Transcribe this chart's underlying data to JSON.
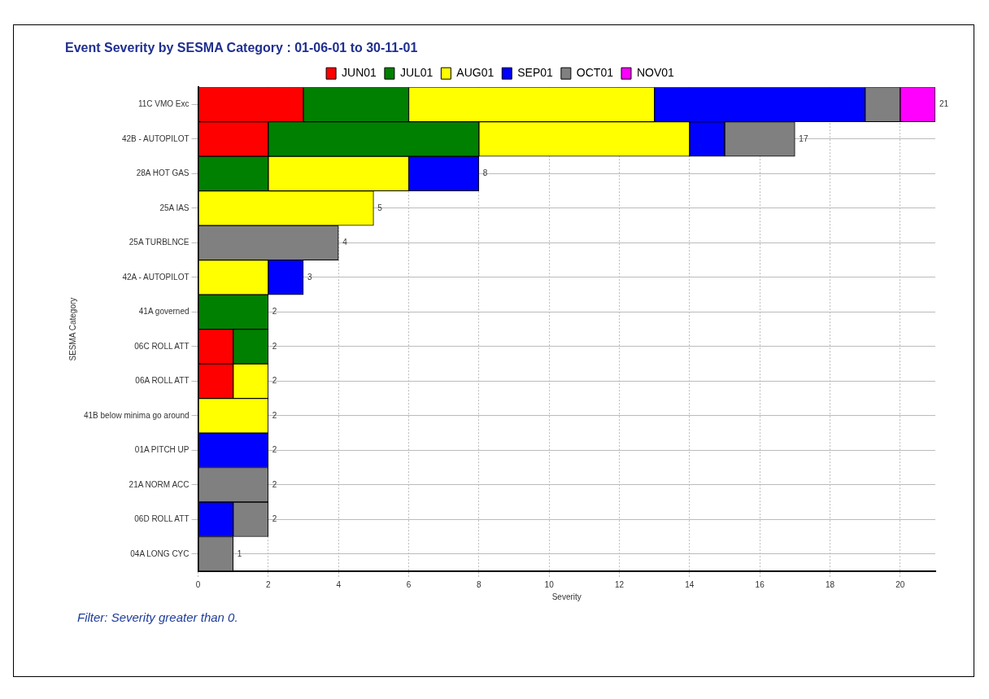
{
  "chart_data": {
    "type": "bar",
    "orientation": "horizontal",
    "stacked": true,
    "title": "Event Severity by SESMA Category : 01-06-01 to 30-11-01",
    "xlabel": "Severity",
    "ylabel": "SESMA Category",
    "categories": [
      "11C VMO Exc",
      "42B - AUTOPILOT",
      "28A HOT GAS",
      "25A IAS",
      "25A TURBLNCE",
      "42A - AUTOPILOT",
      "41A governed",
      "06C ROLL ATT",
      "06A ROLL ATT",
      "41B below minima go around",
      "01A PITCH UP",
      "21A NORM ACC",
      "06D ROLL ATT",
      "04A LONG CYC"
    ],
    "series": [
      {
        "name": "JUN01",
        "color": "#ff0000",
        "values": [
          3,
          2,
          0,
          0,
          0,
          0,
          0,
          1,
          1,
          0,
          0,
          0,
          0,
          0
        ]
      },
      {
        "name": "JUL01",
        "color": "#008000",
        "values": [
          3,
          6,
          2,
          0,
          0,
          0,
          2,
          1,
          0,
          0,
          0,
          0,
          0,
          0
        ]
      },
      {
        "name": "AUG01",
        "color": "#ffff00",
        "values": [
          7,
          6,
          4,
          5,
          0,
          2,
          0,
          0,
          1,
          2,
          0,
          0,
          0,
          0
        ]
      },
      {
        "name": "SEP01",
        "color": "#0000ff",
        "values": [
          6,
          1,
          2,
          0,
          0,
          1,
          0,
          0,
          0,
          0,
          2,
          0,
          1,
          0
        ]
      },
      {
        "name": "OCT01",
        "color": "#808080",
        "values": [
          1,
          2,
          0,
          0,
          4,
          0,
          0,
          0,
          0,
          0,
          0,
          2,
          1,
          1
        ]
      },
      {
        "name": "NOV01",
        "color": "#ff00ff",
        "values": [
          1,
          0,
          0,
          0,
          0,
          0,
          0,
          0,
          0,
          0,
          0,
          0,
          0,
          0
        ]
      }
    ],
    "totals": [
      "21",
      "17",
      "8",
      "5",
      "4",
      "3",
      "2",
      "2",
      "2",
      "2",
      "2",
      "2",
      "2",
      "1"
    ],
    "xlim": [
      0,
      21
    ],
    "xticks": [
      0,
      2,
      4,
      6,
      8,
      10,
      12,
      14,
      16,
      18,
      20
    ],
    "grid": true,
    "legend": "top",
    "annotations": [
      "Filter: Severity greater than 0."
    ]
  }
}
